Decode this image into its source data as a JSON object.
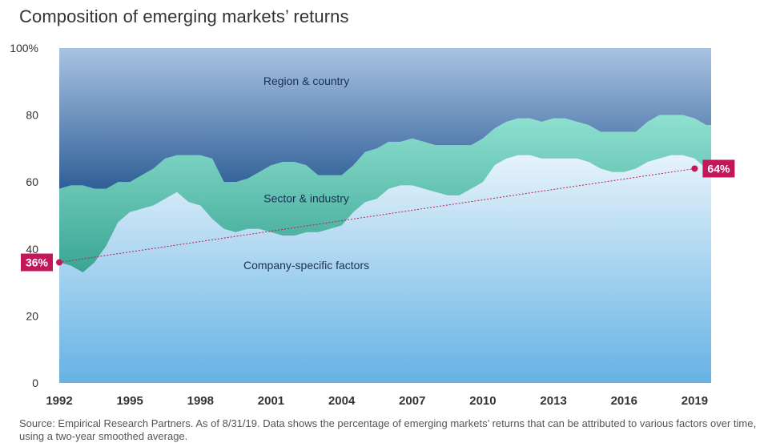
{
  "title": "Composition of emerging markets’ returns",
  "source": "Source: Empirical Research Partners. As of 8/31/19. Data shows the percentage of emerging markets’ returns that can be attributed to various factors over time, using a two-year smoothed average.",
  "colors": {
    "region": "#97b3d6",
    "sector": "#6fcfbf",
    "company": "#8ec6ec",
    "callout": "#c2185b"
  },
  "chart_data": {
    "type": "area",
    "stacked": true,
    "title": "Composition of emerging markets’ returns",
    "xlabel": "",
    "ylabel": "",
    "xlim": [
      1992.0,
      2019.7
    ],
    "ylim": [
      0,
      100
    ],
    "x_ticks": [
      1992,
      1995,
      1998,
      2001,
      2004,
      2007,
      2010,
      2013,
      2016,
      2019
    ],
    "y_ticks": [
      {
        "value": 0,
        "label": "0"
      },
      {
        "value": 20,
        "label": "20"
      },
      {
        "value": 40,
        "label": "40"
      },
      {
        "value": 60,
        "label": "60"
      },
      {
        "value": 80,
        "label": "80"
      },
      {
        "value": 100,
        "label": "100%"
      }
    ],
    "x": [
      1992.0,
      1992.5,
      1993.0,
      1993.5,
      1994.0,
      1994.5,
      1995.0,
      1995.5,
      1996.0,
      1996.5,
      1997.0,
      1997.5,
      1998.0,
      1998.5,
      1999.0,
      1999.5,
      2000.0,
      2000.5,
      2001.0,
      2001.5,
      2002.0,
      2002.5,
      2003.0,
      2003.5,
      2004.0,
      2004.5,
      2005.0,
      2005.5,
      2006.0,
      2006.5,
      2007.0,
      2007.5,
      2008.0,
      2008.5,
      2009.0,
      2009.5,
      2010.0,
      2010.5,
      2011.0,
      2011.5,
      2012.0,
      2012.5,
      2013.0,
      2013.5,
      2014.0,
      2014.5,
      2015.0,
      2015.5,
      2016.0,
      2016.5,
      2017.0,
      2017.5,
      2018.0,
      2018.5,
      2019.0,
      2019.5
    ],
    "series": [
      {
        "name": "Company-specific factors",
        "values": [
          36,
          35,
          33,
          36,
          41,
          48,
          51,
          52,
          53,
          55,
          57,
          54,
          53,
          49,
          46,
          45,
          46,
          46,
          45,
          44,
          44,
          45,
          45,
          46,
          47,
          51,
          54,
          55,
          58,
          59,
          59,
          58,
          57,
          56,
          56,
          58,
          60,
          65,
          67,
          68,
          68,
          67,
          67,
          67,
          67,
          66,
          64,
          63,
          63,
          64,
          66,
          67,
          68,
          68,
          67,
          64
        ]
      },
      {
        "name": "Sector & industry",
        "values": [
          22,
          24,
          26,
          22,
          17,
          12,
          9,
          10,
          11,
          12,
          11,
          14,
          15,
          18,
          14,
          15,
          15,
          17,
          20,
          22,
          22,
          20,
          17,
          16,
          15,
          14,
          15,
          15,
          14,
          13,
          14,
          14,
          14,
          15,
          15,
          13,
          13,
          11,
          11,
          11,
          11,
          11,
          12,
          12,
          11,
          11,
          11,
          12,
          12,
          11,
          12,
          13,
          12,
          12,
          12,
          13
        ]
      },
      {
        "name": "Region & country",
        "values": [
          42,
          41,
          41,
          42,
          42,
          40,
          40,
          38,
          36,
          33,
          32,
          32,
          32,
          33,
          40,
          40,
          39,
          37,
          35,
          34,
          34,
          35,
          38,
          38,
          38,
          35,
          31,
          30,
          28,
          28,
          27,
          28,
          29,
          29,
          29,
          29,
          27,
          24,
          22,
          21,
          21,
          22,
          21,
          21,
          22,
          23,
          25,
          25,
          25,
          25,
          22,
          20,
          20,
          20,
          21,
          23
        ]
      }
    ],
    "trendline": {
      "from": [
        1992.0,
        36
      ],
      "to": [
        2019.0,
        64
      ]
    },
    "callouts": [
      {
        "label": "36%",
        "x": 1992.0,
        "y": 36,
        "side": "left"
      },
      {
        "label": "64%",
        "x": 2019.0,
        "y": 64,
        "side": "right"
      }
    ],
    "band_labels": [
      {
        "text": "Region & country",
        "x": 2002.5,
        "y": 89
      },
      {
        "text": "Sector & industry",
        "x": 2002.5,
        "y": 54
      },
      {
        "text": "Company-specific factors",
        "x": 2002.5,
        "y": 34
      }
    ]
  }
}
